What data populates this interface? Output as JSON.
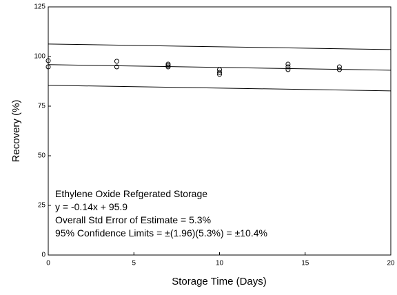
{
  "chart_data": {
    "type": "scatter",
    "xlabel": "Storage Time (Days)",
    "ylabel": "Recovery (%)",
    "x": [
      0,
      0,
      4,
      4,
      7,
      7,
      7,
      10,
      10,
      10,
      14,
      14,
      14,
      17,
      17
    ],
    "values": [
      97.9,
      94.8,
      97.6,
      94.8,
      96.2,
      95.5,
      94.8,
      93.4,
      92,
      91,
      96.2,
      94.8,
      93.4,
      94.8,
      93.4
    ],
    "color": "#000000",
    "lines": [
      {
        "x": [
          0,
          20
        ],
        "values": [
          106.3,
          103.5
        ]
      },
      {
        "x": [
          0,
          20
        ],
        "values": [
          95.9,
          93.1
        ]
      },
      {
        "x": [
          0,
          20
        ],
        "values": [
          85.5,
          82.7
        ]
      }
    ],
    "annotations": [
      "Ethylene Oxide Refgerated Storage",
      "y = -0.14x + 95.9",
      "Overall Std Error of Estimate = 5.3%",
      "95% Confidence Limits = ±(1.96)(5.3%) = ±10.4%"
    ],
    "xlim": [
      0,
      20
    ],
    "ylim": [
      0,
      125
    ],
    "xticks": [
      0,
      5,
      10,
      15,
      20
    ],
    "yticks": [
      0,
      25,
      50,
      75,
      100,
      125
    ]
  }
}
